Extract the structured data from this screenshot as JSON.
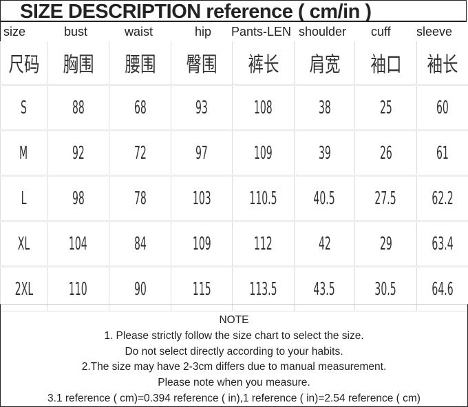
{
  "title": "SIZE DESCRIPTION reference ( cm/in )",
  "headers_en": [
    "size",
    "bust",
    "waist",
    "hip",
    "Pants-LEN",
    "shoulder",
    "cuff",
    "sleeve"
  ],
  "headers_cn": [
    "尺码",
    "胸围",
    "腰围",
    "臀围",
    "裤长",
    "肩宽",
    "袖口",
    "袖长"
  ],
  "rows": [
    [
      "S",
      "88",
      "68",
      "93",
      "108",
      "38",
      "25",
      "60"
    ],
    [
      "M",
      "92",
      "72",
      "97",
      "109",
      "39",
      "26",
      "61"
    ],
    [
      "L",
      "98",
      "78",
      "103",
      "110.5",
      "40.5",
      "27.5",
      "62.2"
    ],
    [
      "XL",
      "104",
      "84",
      "109",
      "112",
      "42",
      "29",
      "63.4"
    ],
    [
      "2XL",
      "110",
      "90",
      "115",
      "113.5",
      "43.5",
      "30.5",
      "64.6"
    ]
  ],
  "note": {
    "heading": "NOTE",
    "lines": [
      "1. Please strictly follow the size chart to select the size.",
      "Do not select directly according to your habits.",
      "2.The size may have 2-3cm differs due to manual measurement.",
      "Please note when you measure.",
      "3.1 reference ( cm)=0.394 reference ( in),1 reference ( in)=2.54 reference ( cm)"
    ]
  }
}
